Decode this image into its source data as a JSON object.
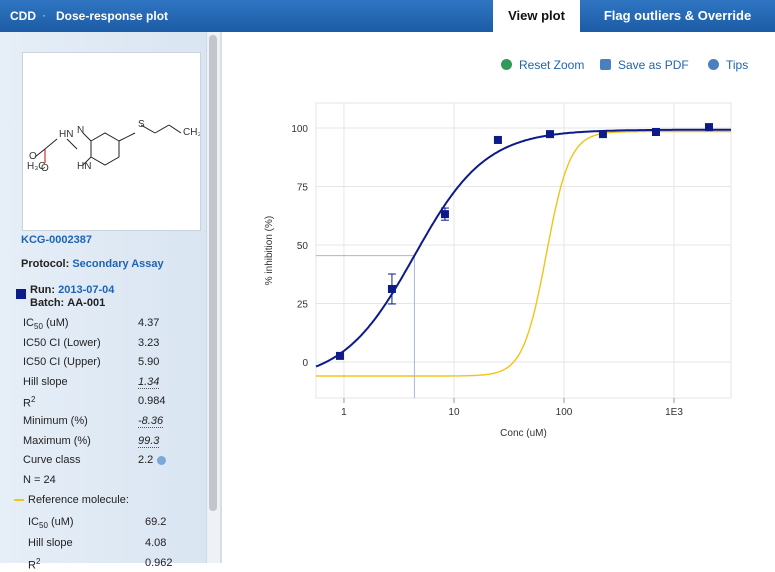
{
  "header": {
    "app": "CDD",
    "title": "Dose-response plot",
    "tabs": [
      {
        "label": "View plot",
        "active": true
      },
      {
        "label": "Flag outliers & Override",
        "active": false
      }
    ]
  },
  "toolbar": [
    "Reset Zoom",
    "Save as PDF",
    "Tips"
  ],
  "molecule": {
    "id": "KCG-0002387",
    "protocol_label": "Protocol:",
    "protocol": "Secondary Assay",
    "run_label": "Run:",
    "run": "2013-07-04",
    "batch_label": "Batch:",
    "batch": "AA-001"
  },
  "results": [
    {
      "label": "IC",
      "sub": "50",
      "suffix": " (uM)",
      "value": 4.37
    },
    {
      "label": "IC50 CI (Lower)",
      "value": 3.23
    },
    {
      "label": "IC50 CI (Upper)",
      "value": "5.90"
    },
    {
      "label": "Hill slope",
      "value": 1.34,
      "editable": true
    },
    {
      "label": "R",
      "sup": "2",
      "value": 0.984
    },
    {
      "label": "Minimum (%)",
      "value": -8.36,
      "editable": true
    },
    {
      "label": "Maximum (%)",
      "value": 99.3,
      "editable": true
    },
    {
      "label": "Curve class",
      "value": 2.2,
      "help": true
    },
    {
      "label": "N = 24"
    }
  ],
  "reference": {
    "label": "Reference molecule:",
    "results": [
      {
        "label": "IC",
        "sub": "50",
        "suffix": " (uM)",
        "value": 69.2
      },
      {
        "label": "Hill slope",
        "value": 4.08
      },
      {
        "label": "R",
        "sup": "2",
        "value": 0.962
      }
    ]
  },
  "chart_data": {
    "type": "scatter",
    "x_label": "Conc (uM)",
    "y_label": "% inhibition (%)",
    "log_x": true,
    "grid": true,
    "xlim": [
      0.557,
      3297
    ],
    "ylim": [
      -15.4,
      110.7
    ],
    "xticks": [
      1,
      10,
      100,
      {
        "value": 1000,
        "label": "1E3"
      }
    ],
    "yticks": [
      0,
      25,
      50,
      75,
      100
    ],
    "x": [
      0.92,
      2.73,
      8.28,
      25.1,
      74.6,
      226,
      686,
      2080
    ],
    "series": [
      {
        "color": "#0d1b8a",
        "values": [
          2.6,
          31.2,
          63.2,
          94.9,
          97.4,
          97.4,
          98.3,
          100.4
        ],
        "errors": [
          null,
          6.4,
          2.6,
          null,
          null,
          null,
          null,
          null
        ]
      }
    ],
    "fit_color": "#0d1b8a",
    "reference_curve": {
      "color": "#f2c318",
      "bottom": -6,
      "top": 98.5
    }
  }
}
